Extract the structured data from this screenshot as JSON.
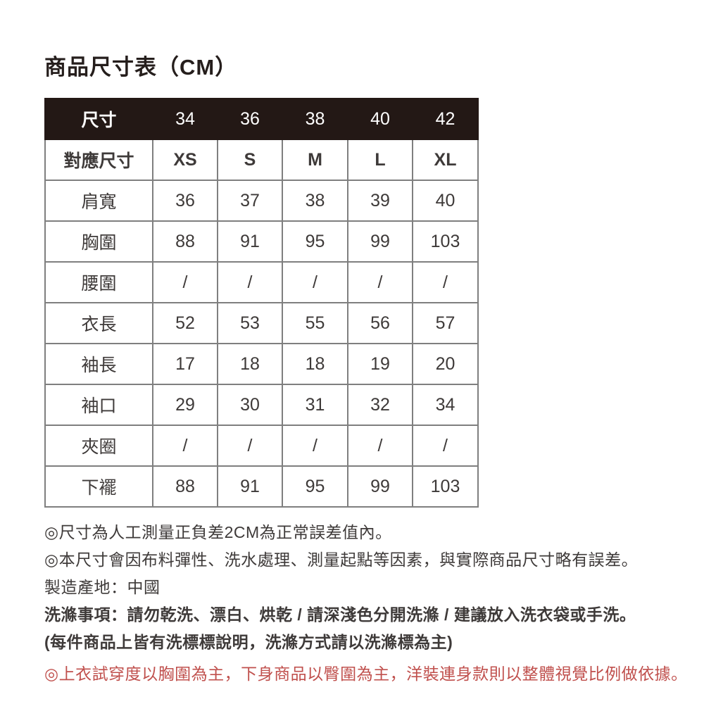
{
  "page": {
    "title": "商品尺寸表（CM）"
  },
  "colors": {
    "header_background": "#231815",
    "header_text": "#ffffff",
    "table_border": "#7f7f7f",
    "body_text": "#3e3a39",
    "warning_red": "#c0504d"
  },
  "size_table": {
    "header": {
      "label": "尺寸",
      "sizes": [
        "34",
        "36",
        "38",
        "40",
        "42"
      ]
    },
    "rows": [
      {
        "label": "對應尺寸",
        "values": [
          "XS",
          "S",
          "M",
          "L",
          "XL"
        ],
        "bold": true
      },
      {
        "label": "肩寬",
        "values": [
          "36",
          "37",
          "38",
          "39",
          "40"
        ],
        "bold": false
      },
      {
        "label": "胸圍",
        "values": [
          "88",
          "91",
          "95",
          "99",
          "103"
        ],
        "bold": false
      },
      {
        "label": "腰圍",
        "values": [
          "/",
          "/",
          "/",
          "/",
          "/"
        ],
        "bold": false
      },
      {
        "label": "衣長",
        "values": [
          "52",
          "53",
          "55",
          "56",
          "57"
        ],
        "bold": false
      },
      {
        "label": "袖長",
        "values": [
          "17",
          "18",
          "18",
          "19",
          "20"
        ],
        "bold": false
      },
      {
        "label": "袖口",
        "values": [
          "29",
          "30",
          "31",
          "32",
          "34"
        ],
        "bold": false
      },
      {
        "label": "夾圈",
        "values": [
          "/",
          "/",
          "/",
          "/",
          "/"
        ],
        "bold": false
      },
      {
        "label": "下襬",
        "values": [
          "88",
          "91",
          "95",
          "99",
          "103"
        ],
        "bold": false
      }
    ]
  },
  "notes": [
    {
      "text": "◎尺寸為人工測量正負差2CM為正常誤差值內。",
      "style": "normal"
    },
    {
      "text": "◎本尺寸會因布料彈性、洗水處理、測量起點等因素，與實際商品尺寸略有誤差。",
      "style": "normal"
    },
    {
      "text": "製造產地：中國",
      "style": "normal"
    },
    {
      "text": "洗滌事項：請勿乾洗、漂白、烘乾 / 請深淺色分開洗滌 / 建議放入洗衣袋或手洗。",
      "style": "bold"
    },
    {
      "text": "(每件商品上皆有洗標標說明，洗滌方式請以洗滌標為主)",
      "style": "bold"
    },
    {
      "text": "◎上衣試穿度以胸圍為主，下身商品以臀圍為主，洋裝連身款則以整體視覺比例做依據。",
      "style": "red"
    }
  ]
}
